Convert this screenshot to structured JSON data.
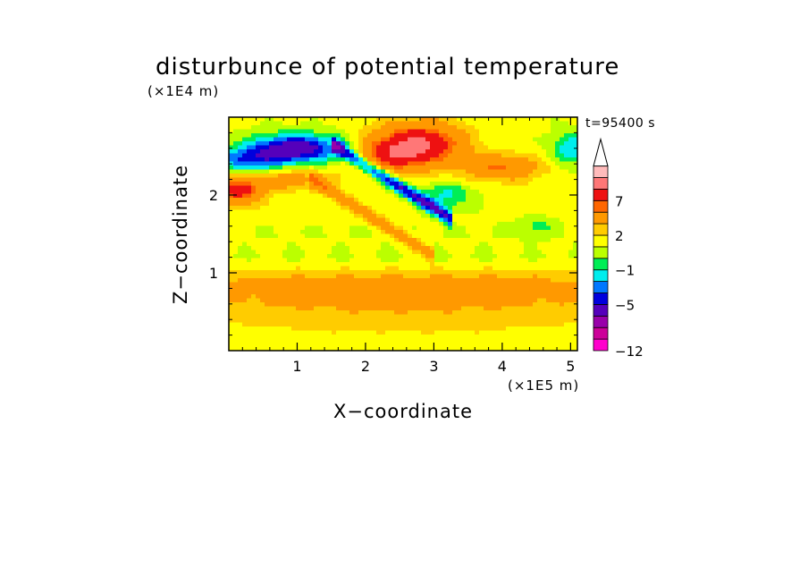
{
  "chart_data": {
    "type": "heatmap",
    "title": "disturbunce of potential temperature",
    "xlabel": "X−coordinate",
    "ylabel": "Z−coordinate",
    "x_unit_label": "(×1E5 m)",
    "y_unit_label": "(×1E4 m)",
    "time_label": "t=95400 s",
    "xlim": [
      0,
      5.1
    ],
    "ylim": [
      0,
      3.0
    ],
    "x_ticks": [
      1,
      2,
      3,
      4,
      5
    ],
    "y_ticks": [
      1,
      2
    ],
    "x_tick_labels": [
      "1",
      "2",
      "3",
      "4",
      "5"
    ],
    "y_tick_labels": [
      "1",
      "2"
    ],
    "colorbar": {
      "colors": [
        "#ff00cc",
        "#cc0099",
        "#9900aa",
        "#5500bb",
        "#0000dd",
        "#0077ff",
        "#00eeee",
        "#00ee55",
        "#bbff00",
        "#ffff00",
        "#ffcc00",
        "#ff9900",
        "#ff6600",
        "#ee1111",
        "#ff7777",
        "#ffbbbb"
      ],
      "labels": [
        {
          "value": "−12",
          "index": 0
        },
        {
          "value": "−5",
          "index": 4
        },
        {
          "value": "−1",
          "index": 7
        },
        {
          "value": "2",
          "index": 10
        },
        {
          "value": "7",
          "index": 13
        }
      ],
      "extend_top": true
    }
  }
}
